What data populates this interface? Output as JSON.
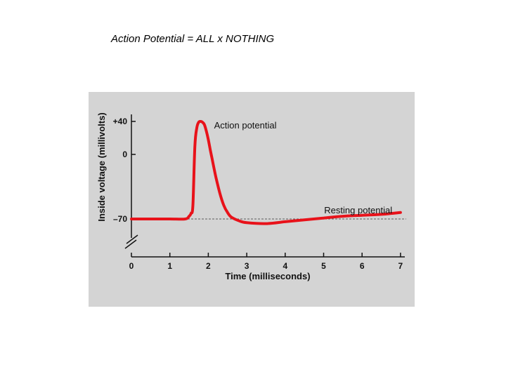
{
  "slide": {
    "title": "Action Potential = ALL x NOTHING"
  },
  "chart_data": {
    "type": "line",
    "xlabel": "Time (milliseconds)",
    "ylabel": "Inside voltage (millivolts)",
    "xlim": [
      0,
      7
    ],
    "x_ticks": [
      {
        "value": 0,
        "label": "0"
      },
      {
        "value": 1,
        "label": "1"
      },
      {
        "value": 2,
        "label": "2"
      },
      {
        "value": 3,
        "label": "3"
      },
      {
        "value": 4,
        "label": "4"
      },
      {
        "value": 5,
        "label": "5"
      },
      {
        "value": 6,
        "label": "6"
      },
      {
        "value": 7,
        "label": "7"
      }
    ],
    "y_ticks": [
      {
        "value": 40,
        "label": "+40"
      },
      {
        "value": 0,
        "label": "0"
      },
      {
        "value": -70,
        "label": "–70"
      }
    ],
    "axis_break": true,
    "grid": false,
    "colors": {
      "series": "#e8121a",
      "panel": "#d4d4d4",
      "axis": "#111111"
    },
    "series": [
      {
        "x": [
          0,
          0.5,
          1.0,
          1.4,
          1.5,
          1.55,
          1.6,
          1.65,
          1.7,
          1.75,
          1.8,
          1.85,
          1.9,
          1.95,
          2.0,
          2.05,
          2.1,
          2.2,
          2.3,
          2.4,
          2.5,
          2.6,
          2.8,
          3.0,
          3.5,
          4.0,
          4.5,
          5.0,
          5.5,
          6.0,
          6.5,
          7.0
        ],
        "y": [
          -70,
          -70,
          -70,
          -70,
          -67,
          -64,
          -55,
          10,
          32,
          39,
          40,
          39,
          36,
          28,
          18,
          6,
          -5,
          -25,
          -42,
          -55,
          -63,
          -68,
          -72,
          -74,
          -75,
          -73,
          -71,
          -69,
          -67,
          -66,
          -65,
          -63
        ]
      }
    ],
    "reference_lines": [
      {
        "y": -70,
        "style": "dashed"
      }
    ],
    "annotations": [
      {
        "text": "Action potential",
        "x": 2.15,
        "y": 35
      },
      {
        "text": "Resting potential",
        "x": 5.9,
        "y": -61
      }
    ]
  }
}
